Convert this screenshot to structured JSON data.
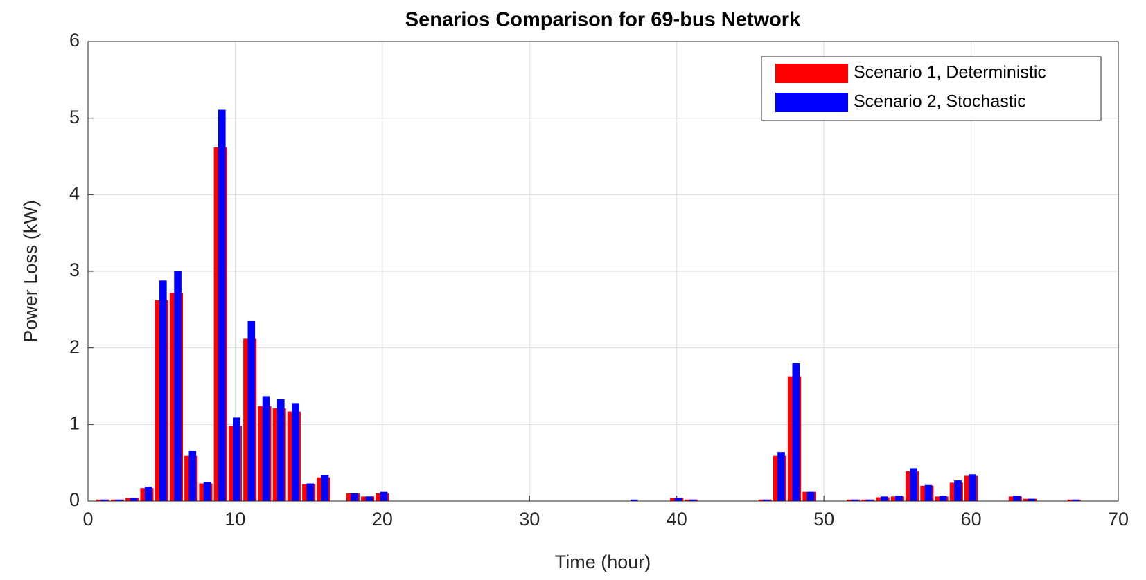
{
  "chart_data": {
    "type": "bar",
    "title": "Senarios Comparison for 69-bus Network",
    "xlabel": "Time (hour)",
    "ylabel": "Power Loss (kW)",
    "x": [
      1,
      2,
      3,
      4,
      5,
      6,
      7,
      8,
      9,
      10,
      11,
      12,
      13,
      14,
      15,
      16,
      17,
      18,
      19,
      20,
      21,
      22,
      23,
      24,
      25,
      26,
      27,
      28,
      29,
      30,
      31,
      32,
      33,
      34,
      35,
      36,
      37,
      38,
      39,
      40,
      41,
      42,
      43,
      44,
      45,
      46,
      47,
      48,
      49,
      50,
      51,
      52,
      53,
      54,
      55,
      56,
      57,
      58,
      59,
      60,
      61,
      62,
      63,
      64,
      65,
      66,
      67,
      68,
      69
    ],
    "series": [
      {
        "name": "Scenario 1, Deterministic",
        "color": "#ff0000",
        "values": [
          0.02,
          0.02,
          0.04,
          0.17,
          2.62,
          2.72,
          0.59,
          0.23,
          4.62,
          0.98,
          2.12,
          1.24,
          1.21,
          1.17,
          0.22,
          0.31,
          0,
          0.1,
          0.06,
          0.1,
          0,
          0,
          0,
          0,
          0,
          0,
          0,
          0,
          0,
          0,
          0,
          0,
          0,
          0,
          0,
          0,
          0,
          0,
          0,
          0.04,
          0.02,
          0,
          0,
          0,
          0,
          0.02,
          0.59,
          1.63,
          0.12,
          0,
          0,
          0.02,
          0.02,
          0.05,
          0.06,
          0.39,
          0.2,
          0.06,
          0.24,
          0.33,
          0,
          0,
          0.06,
          0.03,
          0,
          0,
          0.02,
          0,
          0
        ]
      },
      {
        "name": "Scenario 2, Stochastic",
        "color": "#0000ff",
        "values": [
          0.02,
          0.02,
          0.04,
          0.19,
          2.88,
          3.0,
          0.66,
          0.25,
          5.11,
          1.09,
          2.35,
          1.37,
          1.33,
          1.28,
          0.23,
          0.34,
          0,
          0.1,
          0.06,
          0.12,
          0,
          0,
          0,
          0,
          0,
          0,
          0,
          0,
          0,
          0,
          0,
          0,
          0,
          0,
          0,
          0,
          0.02,
          0,
          0,
          0.04,
          0.02,
          0,
          0,
          0,
          0,
          0.02,
          0.64,
          1.8,
          0.12,
          0,
          0,
          0.02,
          0.02,
          0.06,
          0.07,
          0.43,
          0.21,
          0.07,
          0.27,
          0.35,
          0,
          0,
          0.07,
          0.03,
          0,
          0,
          0.02,
          0,
          0
        ]
      }
    ],
    "xlim": [
      0,
      70
    ],
    "xticks": [
      0,
      10,
      20,
      30,
      40,
      50,
      60,
      70
    ],
    "ylim": [
      0,
      6
    ],
    "yticks": [
      0,
      1,
      2,
      3,
      4,
      5,
      6
    ],
    "grid": true,
    "legend": "northeast"
  }
}
